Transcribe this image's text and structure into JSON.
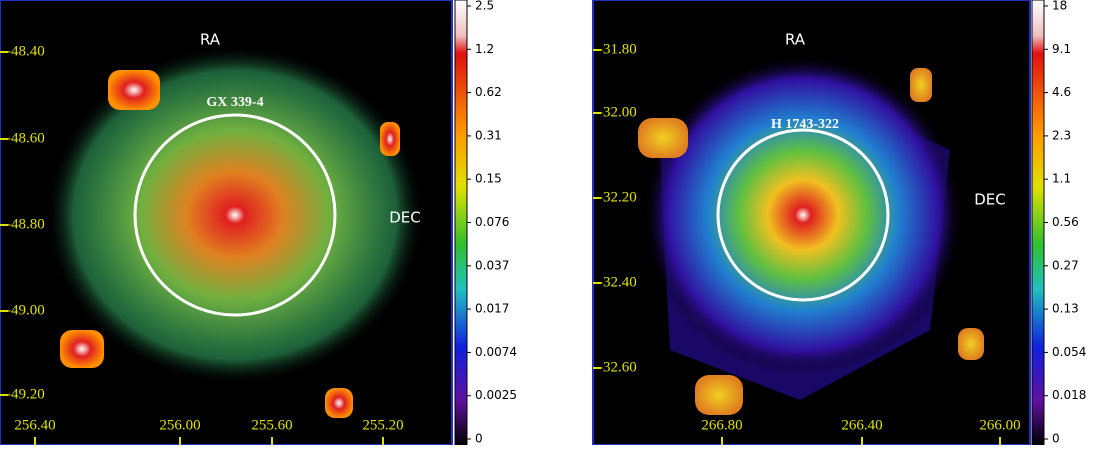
{
  "panels": [
    {
      "ra_label": "RA",
      "dec_label": "DEC",
      "source": "GX 339-4",
      "y_ticks": [
        "-48.40",
        "-48.60",
        "-48.80",
        "-49.00",
        "-49.20"
      ],
      "x_ticks": [
        "256.40",
        "256.00",
        "255.60",
        "255.20"
      ],
      "colorbar": [
        "2.5",
        "1.2",
        "0.62",
        "0.31",
        "0.15",
        "0.076",
        "0.037",
        "0.017",
        "0.0074",
        "0.0025",
        "0"
      ]
    },
    {
      "ra_label": "RA",
      "dec_label": "DEC",
      "source": "H 1743-322",
      "y_ticks": [
        "-31.80",
        "-32.00",
        "-32.20",
        "-32.40",
        "-32.60"
      ],
      "x_ticks": [
        "266.80",
        "266.40",
        "266.00"
      ],
      "colorbar": [
        "18",
        "9.1",
        "4.6",
        "2.3",
        "1.1",
        "0.56",
        "0.27",
        "0.13",
        "0.054",
        "0.018",
        "0"
      ]
    }
  ]
}
